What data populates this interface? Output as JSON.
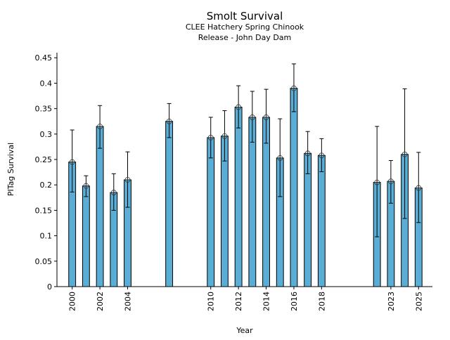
{
  "chart_data": {
    "type": "bar",
    "title": "Smolt Survival",
    "subtitle": [
      "CLEE Hatchery Spring Chinook",
      "Release - John Day Dam"
    ],
    "xlabel": "Year",
    "ylabel": "PITag Survival",
    "ylim": [
      0,
      0.46
    ],
    "xlim": [
      1998.9,
      2026.0
    ],
    "grid": false,
    "bar_color": "#5aaed6",
    "yticks": [
      0,
      0.05,
      0.1,
      0.15,
      0.2,
      0.25,
      0.3,
      0.35,
      0.4,
      0.45
    ],
    "ytick_labels": [
      "0",
      "0.05",
      "0.1",
      "0.15",
      "0.2",
      "0.25",
      "0.3",
      "0.35",
      "0.4",
      "0.45"
    ],
    "xticks": [
      2000,
      2002,
      2004,
      2010,
      2012,
      2014,
      2016,
      2018,
      2023,
      2025
    ],
    "xtick_labels": [
      "2000",
      "2002",
      "2004",
      "2010",
      "2012",
      "2014",
      "2016",
      "2018",
      "2023",
      "2025"
    ],
    "x": [
      2000,
      2001,
      2002,
      2003,
      2004,
      2007,
      2010,
      2011,
      2012,
      2013,
      2014,
      2015,
      2016,
      2017,
      2018,
      2022,
      2023,
      2024,
      2025
    ],
    "values": [
      0.245,
      0.198,
      0.315,
      0.185,
      0.21,
      0.325,
      0.293,
      0.296,
      0.353,
      0.333,
      0.333,
      0.253,
      0.39,
      0.262,
      0.258,
      0.205,
      0.207,
      0.26,
      0.194
    ],
    "error_upper": [
      0.308,
      0.218,
      0.356,
      0.222,
      0.265,
      0.36,
      0.333,
      0.346,
      0.395,
      0.384,
      0.388,
      0.33,
      0.438,
      0.305,
      0.291,
      0.315,
      0.248,
      0.389,
      0.264
    ],
    "error_lower": [
      0.186,
      0.177,
      0.272,
      0.15,
      0.156,
      0.293,
      0.253,
      0.247,
      0.312,
      0.284,
      0.282,
      0.177,
      0.344,
      0.222,
      0.226,
      0.098,
      0.164,
      0.134,
      0.126
    ]
  }
}
